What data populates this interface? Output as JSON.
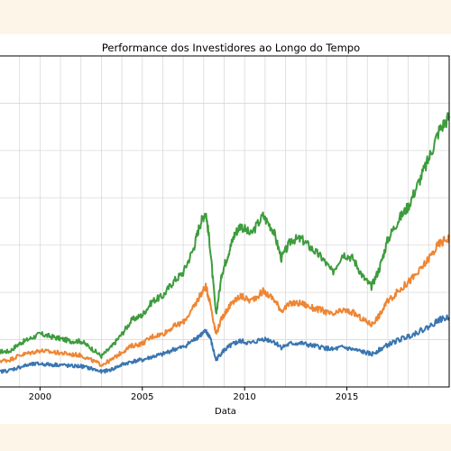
{
  "colors": {
    "page_background": "#fdf6e8",
    "series_blue": "#3a75b0",
    "series_orange": "#ef8532",
    "series_green": "#3d9c3d",
    "grid": "#d9d9d9",
    "axis": "#000000"
  },
  "chart_data": {
    "type": "line",
    "title": "Performance dos Investidores ao Longo do Tempo",
    "xlabel": "Data",
    "ylabel": "",
    "xlim": [
      1998.0,
      2020.0
    ],
    "ylim": [
      0,
      7
    ],
    "grid": true,
    "x_ticks": [
      2000,
      2005,
      2010,
      2015
    ],
    "x_tick_labels": [
      "2000",
      "2005",
      "2010",
      "2015"
    ],
    "y_tick_labels": [],
    "series": [
      {
        "color": "#3d9c3d",
        "points": [
          [
            1998.0,
            0.75
          ],
          [
            1998.5,
            0.75
          ],
          [
            1999.0,
            0.92
          ],
          [
            1999.5,
            1.02
          ],
          [
            2000.0,
            1.12
          ],
          [
            2000.5,
            1.07
          ],
          [
            2001.0,
            1.02
          ],
          [
            2001.5,
            0.97
          ],
          [
            2002.0,
            0.97
          ],
          [
            2002.5,
            0.82
          ],
          [
            2003.0,
            0.65
          ],
          [
            2003.5,
            0.85
          ],
          [
            2004.0,
            1.12
          ],
          [
            2004.5,
            1.42
          ],
          [
            2005.0,
            1.52
          ],
          [
            2005.5,
            1.82
          ],
          [
            2006.0,
            1.92
          ],
          [
            2006.5,
            2.22
          ],
          [
            2007.0,
            2.42
          ],
          [
            2007.5,
            2.92
          ],
          [
            2007.8,
            3.42
          ],
          [
            2008.1,
            3.72
          ],
          [
            2008.3,
            3.02
          ],
          [
            2008.6,
            1.52
          ],
          [
            2008.9,
            2.42
          ],
          [
            2009.2,
            2.82
          ],
          [
            2009.5,
            3.22
          ],
          [
            2009.8,
            3.42
          ],
          [
            2010.3,
            3.22
          ],
          [
            2010.9,
            3.62
          ],
          [
            2011.4,
            3.32
          ],
          [
            2011.8,
            2.72
          ],
          [
            2012.3,
            3.12
          ],
          [
            2012.8,
            3.12
          ],
          [
            2013.3,
            2.92
          ],
          [
            2013.8,
            2.72
          ],
          [
            2014.3,
            2.42
          ],
          [
            2014.8,
            2.82
          ],
          [
            2015.3,
            2.72
          ],
          [
            2015.8,
            2.32
          ],
          [
            2016.2,
            2.12
          ],
          [
            2016.6,
            2.52
          ],
          [
            2017.0,
            3.12
          ],
          [
            2017.5,
            3.52
          ],
          [
            2018.0,
            3.82
          ],
          [
            2018.5,
            4.32
          ],
          [
            2019.0,
            4.82
          ],
          [
            2019.5,
            5.42
          ],
          [
            2020.0,
            5.72
          ]
        ]
      },
      {
        "color": "#ef8532",
        "points": [
          [
            1998.0,
            0.55
          ],
          [
            1998.5,
            0.57
          ],
          [
            1999.0,
            0.67
          ],
          [
            1999.5,
            0.72
          ],
          [
            2000.0,
            0.77
          ],
          [
            2000.5,
            0.74
          ],
          [
            2001.0,
            0.72
          ],
          [
            2001.5,
            0.69
          ],
          [
            2002.0,
            0.67
          ],
          [
            2002.5,
            0.57
          ],
          [
            2003.0,
            0.47
          ],
          [
            2003.5,
            0.57
          ],
          [
            2004.0,
            0.74
          ],
          [
            2004.5,
            0.87
          ],
          [
            2005.0,
            0.92
          ],
          [
            2005.5,
            1.07
          ],
          [
            2006.0,
            1.12
          ],
          [
            2006.5,
            1.27
          ],
          [
            2007.0,
            1.37
          ],
          [
            2007.5,
            1.67
          ],
          [
            2007.8,
            1.92
          ],
          [
            2008.1,
            2.12
          ],
          [
            2008.3,
            1.82
          ],
          [
            2008.6,
            1.12
          ],
          [
            2008.9,
            1.47
          ],
          [
            2009.2,
            1.67
          ],
          [
            2009.5,
            1.82
          ],
          [
            2009.8,
            1.92
          ],
          [
            2010.3,
            1.82
          ],
          [
            2010.9,
            2.02
          ],
          [
            2011.4,
            1.87
          ],
          [
            2011.8,
            1.62
          ],
          [
            2012.3,
            1.77
          ],
          [
            2012.8,
            1.77
          ],
          [
            2013.3,
            1.67
          ],
          [
            2013.8,
            1.62
          ],
          [
            2014.3,
            1.52
          ],
          [
            2014.8,
            1.62
          ],
          [
            2015.3,
            1.57
          ],
          [
            2015.8,
            1.42
          ],
          [
            2016.2,
            1.32
          ],
          [
            2016.6,
            1.52
          ],
          [
            2017.0,
            1.82
          ],
          [
            2017.5,
            2.02
          ],
          [
            2018.0,
            2.22
          ],
          [
            2018.5,
            2.42
          ],
          [
            2019.0,
            2.72
          ],
          [
            2019.5,
            3.02
          ],
          [
            2020.0,
            3.17
          ]
        ]
      },
      {
        "color": "#3a75b0",
        "points": [
          [
            1998.0,
            0.32
          ],
          [
            1998.5,
            0.35
          ],
          [
            1999.0,
            0.42
          ],
          [
            1999.5,
            0.47
          ],
          [
            2000.0,
            0.49
          ],
          [
            2000.5,
            0.47
          ],
          [
            2001.0,
            0.47
          ],
          [
            2001.5,
            0.44
          ],
          [
            2002.0,
            0.44
          ],
          [
            2002.5,
            0.39
          ],
          [
            2003.0,
            0.32
          ],
          [
            2003.5,
            0.37
          ],
          [
            2004.0,
            0.47
          ],
          [
            2004.5,
            0.54
          ],
          [
            2005.0,
            0.57
          ],
          [
            2005.5,
            0.64
          ],
          [
            2006.0,
            0.69
          ],
          [
            2006.5,
            0.79
          ],
          [
            2007.0,
            0.84
          ],
          [
            2007.5,
            0.99
          ],
          [
            2007.8,
            1.09
          ],
          [
            2008.1,
            1.17
          ],
          [
            2008.3,
            1.07
          ],
          [
            2008.6,
            0.57
          ],
          [
            2008.9,
            0.74
          ],
          [
            2009.2,
            0.84
          ],
          [
            2009.5,
            0.92
          ],
          [
            2009.8,
            0.97
          ],
          [
            2010.3,
            0.92
          ],
          [
            2010.9,
            1.02
          ],
          [
            2011.4,
            0.97
          ],
          [
            2011.8,
            0.84
          ],
          [
            2012.3,
            0.92
          ],
          [
            2012.8,
            0.92
          ],
          [
            2013.3,
            0.87
          ],
          [
            2013.8,
            0.84
          ],
          [
            2014.3,
            0.79
          ],
          [
            2014.8,
            0.84
          ],
          [
            2015.3,
            0.79
          ],
          [
            2015.8,
            0.74
          ],
          [
            2016.2,
            0.69
          ],
          [
            2016.6,
            0.79
          ],
          [
            2017.0,
            0.89
          ],
          [
            2017.5,
            0.99
          ],
          [
            2018.0,
            1.07
          ],
          [
            2018.5,
            1.17
          ],
          [
            2019.0,
            1.27
          ],
          [
            2019.5,
            1.42
          ],
          [
            2020.0,
            1.47
          ]
        ]
      }
    ]
  }
}
